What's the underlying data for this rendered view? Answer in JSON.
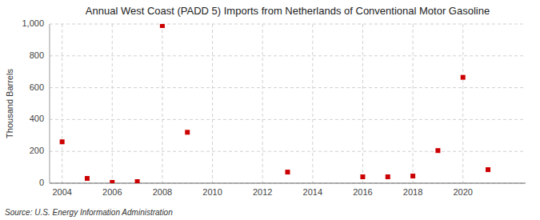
{
  "chart_data": {
    "type": "scatter",
    "title": "Annual West Coast (PADD 5) Imports from Netherlands of Conventional Motor Gasoline",
    "ylabel": "Thousand Barrels",
    "annotations": [
      "Source: U.S. Energy Information Administration"
    ],
    "x": [
      2004,
      2005,
      2006,
      2007,
      2008,
      2009,
      2013,
      2016,
      2017,
      2018,
      2019,
      2020,
      2021
    ],
    "values": [
      260,
      30,
      5,
      10,
      990,
      320,
      70,
      40,
      40,
      45,
      205,
      665,
      85
    ],
    "color": "#cc0000",
    "marker": "square",
    "xlim": [
      2003.5,
      2022.5
    ],
    "ylim": [
      0,
      1000
    ],
    "xticks": [
      2004,
      2006,
      2008,
      2010,
      2012,
      2014,
      2016,
      2018,
      2020
    ],
    "yticks": [
      0,
      200,
      400,
      600,
      800,
      {
        "value": 1000,
        "label": "1,000"
      }
    ],
    "grid": true
  }
}
